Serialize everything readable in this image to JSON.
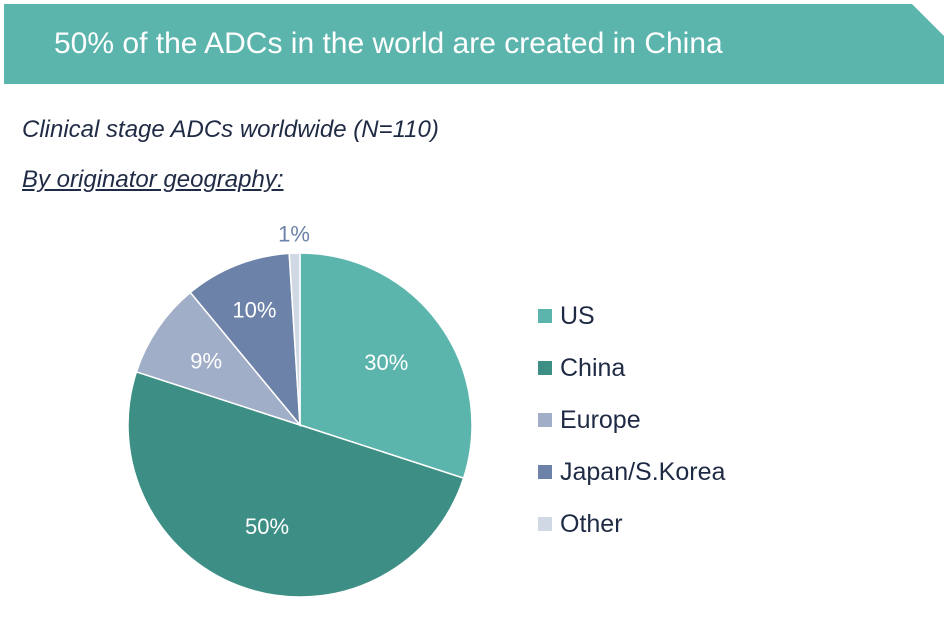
{
  "header": {
    "title": "50% of the ADCs in the world are created in China"
  },
  "subtitle": "Clinical stage ADCs worldwide (N=110)",
  "subtitle2": "By originator geography:",
  "chart_data": {
    "type": "pie",
    "categories": [
      "US",
      "China",
      "Europe",
      "Japan/S.Korea",
      "Other"
    ],
    "values": [
      30,
      50,
      9,
      10,
      1
    ],
    "labels": [
      "30%",
      "50%",
      "9%",
      "10%",
      "1%"
    ],
    "colors": [
      "#5bb5ad",
      "#3d8f85",
      "#a1aec8",
      "#6d82a8",
      "#cfd8e3"
    ],
    "legend_position": "right"
  }
}
